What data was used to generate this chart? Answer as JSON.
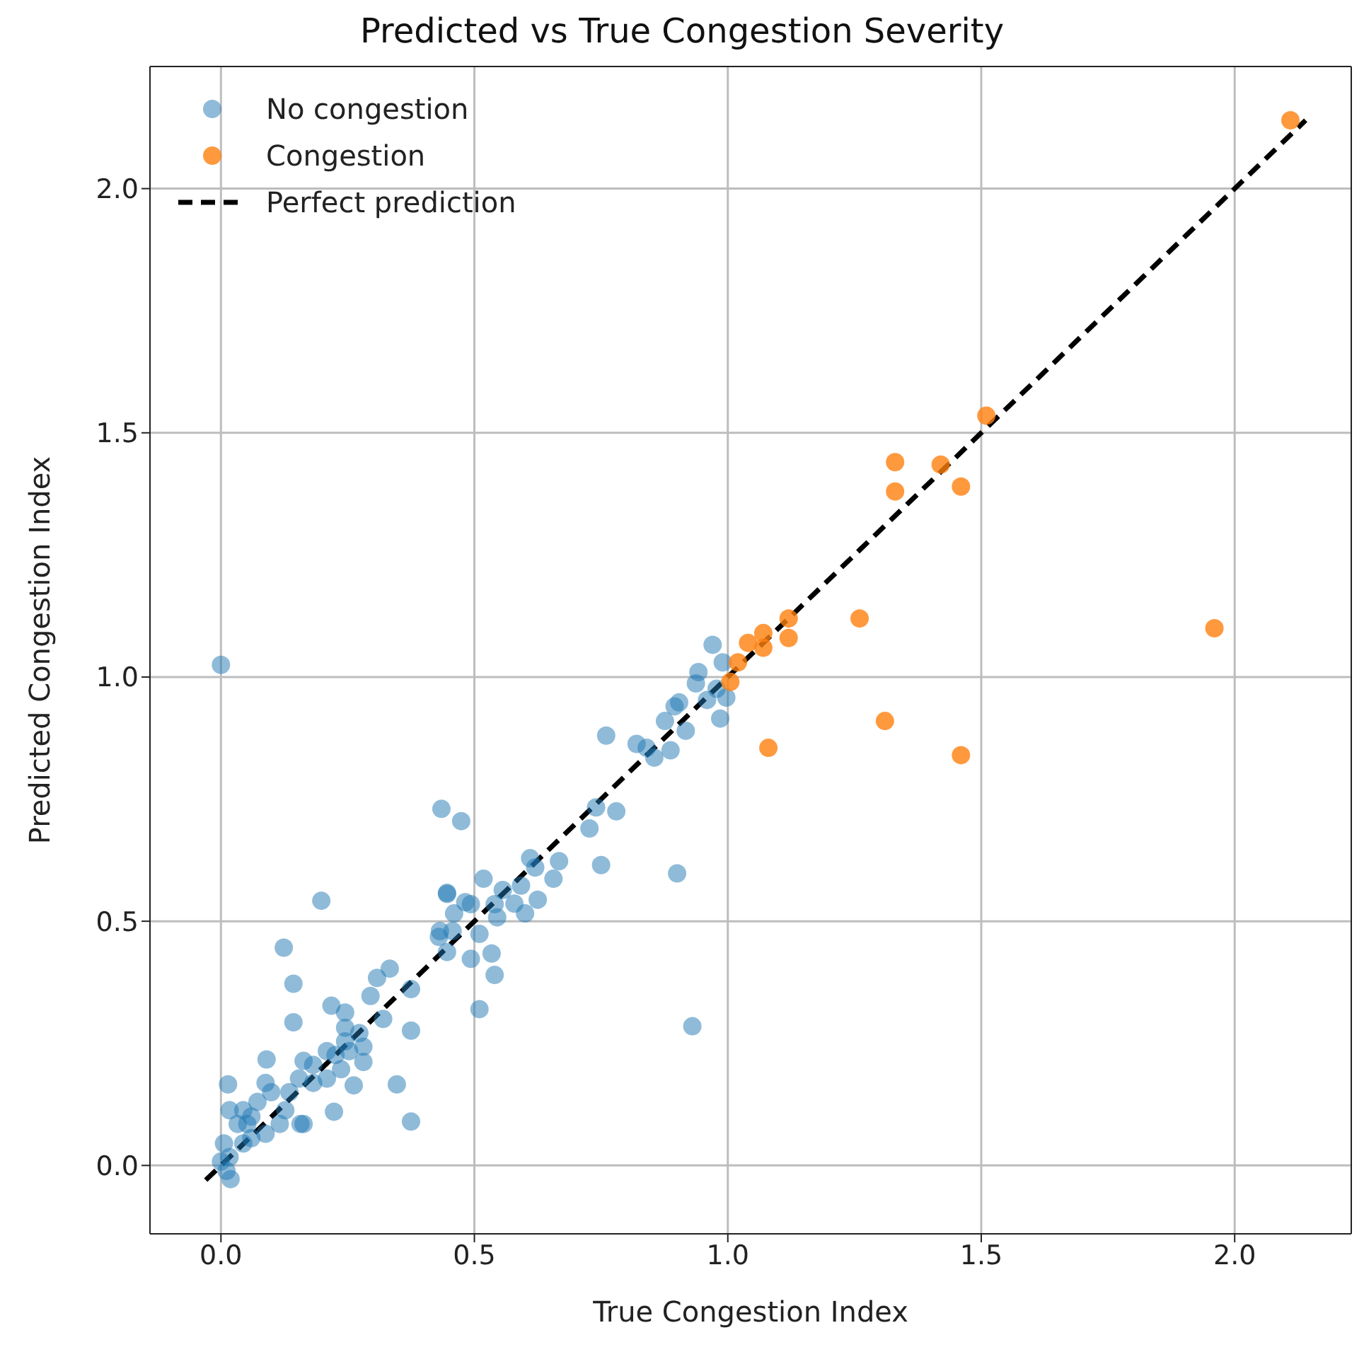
{
  "chart_data": {
    "type": "scatter",
    "title": "Predicted vs True Congestion Severity",
    "xlabel": "True Congestion Index",
    "ylabel": "Predicted Congestion Index",
    "xlim": [
      -0.14,
      2.23
    ],
    "ylim": [
      -0.14,
      2.25
    ],
    "xticks": [
      {
        "value": 0,
        "label": "0.0"
      },
      {
        "value": 0.5,
        "label": "0.5"
      },
      {
        "value": 1,
        "label": "1.0"
      },
      {
        "value": 1.5,
        "label": "1.5"
      },
      {
        "value": 2,
        "label": "2.0"
      }
    ],
    "yticks": [
      {
        "value": 0,
        "label": "0.0"
      },
      {
        "value": 0.5,
        "label": "0.5"
      },
      {
        "value": 1,
        "label": "1.0"
      },
      {
        "value": 1.5,
        "label": "1.5"
      },
      {
        "value": 2,
        "label": "2.0"
      }
    ],
    "grid": true,
    "legend": "top left",
    "marker": "circle",
    "series": [
      {
        "name": "No congestion",
        "color": "#1f77b4",
        "x": [
          0.0,
          0.198,
          0.124,
          0.143,
          0.143,
          0.218,
          0.09,
          0.014,
          0.223,
          0.347,
          0.375,
          0.262,
          0.51,
          0.435,
          0.474,
          0.446,
          0.493,
          0.54,
          0.534,
          0.54,
          0.493,
          0.446,
          0.457,
          0.43,
          0.375,
          0.375,
          0.333,
          0.308,
          0.295,
          0.32,
          0.245,
          0.245,
          0.209,
          0.182,
          0.163,
          0.154,
          0.135,
          0.099,
          0.088,
          0.072,
          0.044,
          0.017,
          0.033,
          0.052,
          0.06,
          0.088,
          0.116,
          0.157,
          0.127,
          0.006,
          0.017,
          0.019,
          0.011,
          0.0,
          0.044,
          0.06,
          0.182,
          0.209,
          0.237,
          0.226,
          0.253,
          0.281,
          0.273,
          0.245,
          0.281,
          0.163,
          0.446,
          0.46,
          0.482,
          0.518,
          0.556,
          0.579,
          0.6,
          0.61,
          0.625,
          0.656,
          0.667,
          0.62,
          0.592,
          0.545,
          0.51,
          0.432,
          0.727,
          0.74,
          0.78,
          0.75,
          0.76,
          0.9,
          0.93,
          0.82,
          0.84,
          0.855,
          0.887,
          0.876,
          0.895,
          0.904,
          0.917,
          0.942,
          0.937,
          0.959,
          0.978,
          0.997,
          0.99,
          0.97,
          0.985
        ],
        "values": [
          1.025,
          0.542,
          0.446,
          0.372,
          0.293,
          0.327,
          0.217,
          0.166,
          0.11,
          0.166,
          0.09,
          0.164,
          0.32,
          0.73,
          0.705,
          0.556,
          0.535,
          0.535,
          0.434,
          0.39,
          0.423,
          0.437,
          0.48,
          0.468,
          0.361,
          0.276,
          0.403,
          0.384,
          0.347,
          0.3,
          0.313,
          0.282,
          0.234,
          0.206,
          0.214,
          0.178,
          0.15,
          0.15,
          0.169,
          0.13,
          0.113,
          0.113,
          0.085,
          0.085,
          0.1,
          0.065,
          0.085,
          0.085,
          0.113,
          0.045,
          0.017,
          -0.028,
          -0.011,
          0.008,
          0.045,
          0.056,
          0.169,
          0.178,
          0.197,
          0.226,
          0.234,
          0.243,
          0.271,
          0.254,
          0.212,
          0.085,
          0.558,
          0.516,
          0.539,
          0.587,
          0.564,
          0.536,
          0.516,
          0.629,
          0.544,
          0.587,
          0.623,
          0.61,
          0.573,
          0.508,
          0.474,
          0.48,
          0.69,
          0.733,
          0.725,
          0.615,
          0.88,
          0.598,
          0.285,
          0.863,
          0.855,
          0.835,
          0.85,
          0.91,
          0.94,
          0.948,
          0.89,
          1.01,
          0.987,
          0.953,
          0.976,
          0.958,
          1.03,
          1.066,
          0.915
        ]
      },
      {
        "name": "Congestion",
        "color": "#ff7f0e",
        "x": [
          2.11,
          1.51,
          1.33,
          1.42,
          1.33,
          1.46,
          1.26,
          1.96,
          1.31,
          1.08,
          1.46,
          1.12,
          1.12,
          1.07,
          1.07,
          1.02,
          1.005,
          1.04
        ],
        "values": [
          2.14,
          1.535,
          1.44,
          1.435,
          1.38,
          1.39,
          1.12,
          1.1,
          0.91,
          0.855,
          0.84,
          1.12,
          1.08,
          1.06,
          1.09,
          1.03,
          0.99,
          1.07
        ]
      },
      {
        "name": "Perfect prediction",
        "type": "line",
        "color": "#000000",
        "line_style": "dashed",
        "marker": "none",
        "x": [
          -0.03,
          2.14
        ],
        "values": [
          -0.03,
          2.14
        ]
      }
    ]
  }
}
